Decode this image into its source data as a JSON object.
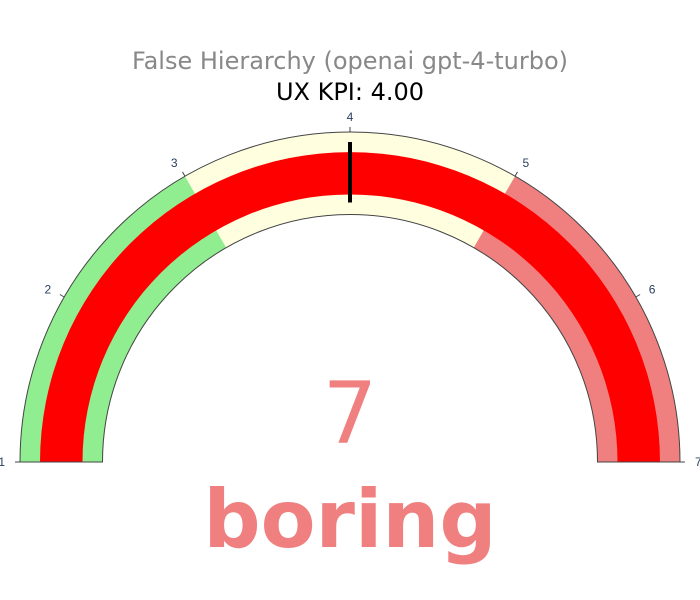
{
  "chart_data": {
    "type": "gauge",
    "title": "False Hierarchy (openai gpt-4-turbo)",
    "subtitle": "UX KPI: 4.00",
    "range": [
      1,
      7
    ],
    "ticks": [
      "1",
      "2",
      "3",
      "4",
      "5",
      "6",
      "7"
    ],
    "steps": [
      {
        "from": 1,
        "to": 3,
        "color": "#90ee90"
      },
      {
        "from": 3,
        "to": 5,
        "color": "#ffffe0"
      },
      {
        "from": 5,
        "to": 7,
        "color": "#f08080"
      }
    ],
    "bar": {
      "value": 7,
      "color": "#ff0000"
    },
    "threshold": {
      "value": 4,
      "color": "#000000"
    },
    "value_display": "7",
    "category_label": "boring",
    "value_color": "#f08080",
    "title_color": "#888888",
    "subtitle_color": "#000000"
  }
}
